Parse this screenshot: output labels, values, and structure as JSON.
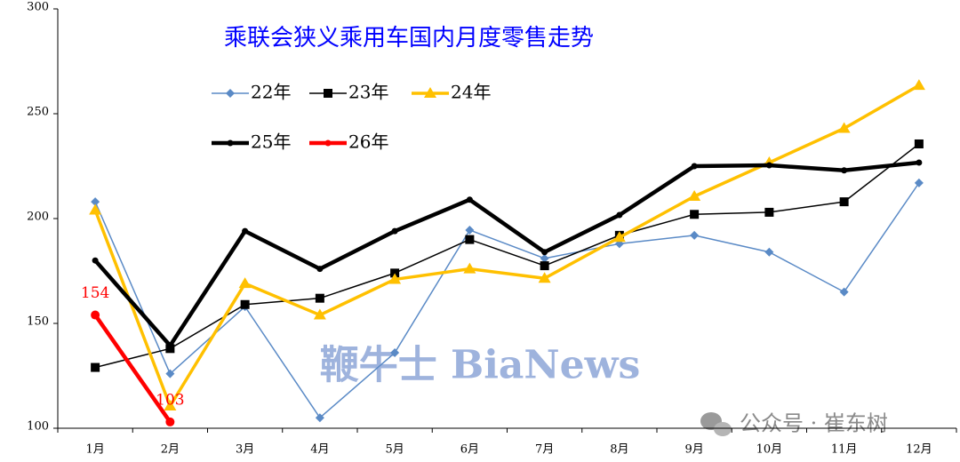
{
  "chart_data": {
    "type": "line",
    "title": "乘联会狭义乘用车国内月度零售走势",
    "categories": [
      "1月",
      "2月",
      "3月",
      "4月",
      "5月",
      "6月",
      "7月",
      "8月",
      "9月",
      "10月",
      "11月",
      "12月"
    ],
    "series": [
      {
        "name": "22年",
        "color": "#5a8ac6",
        "line_width": 1.5,
        "marker": "diamond",
        "values": [
          208,
          126,
          158,
          105,
          136,
          194.5,
          181,
          188,
          192,
          184,
          165,
          217
        ]
      },
      {
        "name": "23年",
        "color": "#000000",
        "line_width": 1.5,
        "marker": "square",
        "values": [
          129,
          138,
          159,
          162,
          174,
          190,
          177.5,
          192,
          202,
          203,
          208,
          235.6
        ]
      },
      {
        "name": "24年",
        "color": "#ffc000",
        "line_width": 3.5,
        "marker": "triangle",
        "values": [
          204,
          110.6,
          169,
          154,
          171,
          176,
          171.5,
          191,
          210.6,
          226.7,
          243,
          263.5
        ]
      },
      {
        "name": "25年",
        "color": "#000000",
        "line_width": 4.5,
        "marker": "circle",
        "values": [
          180,
          139.4,
          194,
          176,
          194,
          209,
          184,
          201.7,
          225,
          225.4,
          223,
          226.7
        ]
      },
      {
        "name": "26年",
        "color": "#ff0000",
        "line_width": 4.5,
        "marker": "circle",
        "show_labels": true,
        "values": [
          154,
          103,
          null,
          null,
          null,
          null,
          null,
          null,
          null,
          null,
          null,
          null
        ]
      }
    ],
    "ylim": [
      100,
      300
    ],
    "yticks": [
      100,
      150,
      200,
      250,
      300
    ],
    "grid": false,
    "watermarks": [
      "鞭牛士 BiaNews",
      "公众号 · 崔东树"
    ]
  }
}
